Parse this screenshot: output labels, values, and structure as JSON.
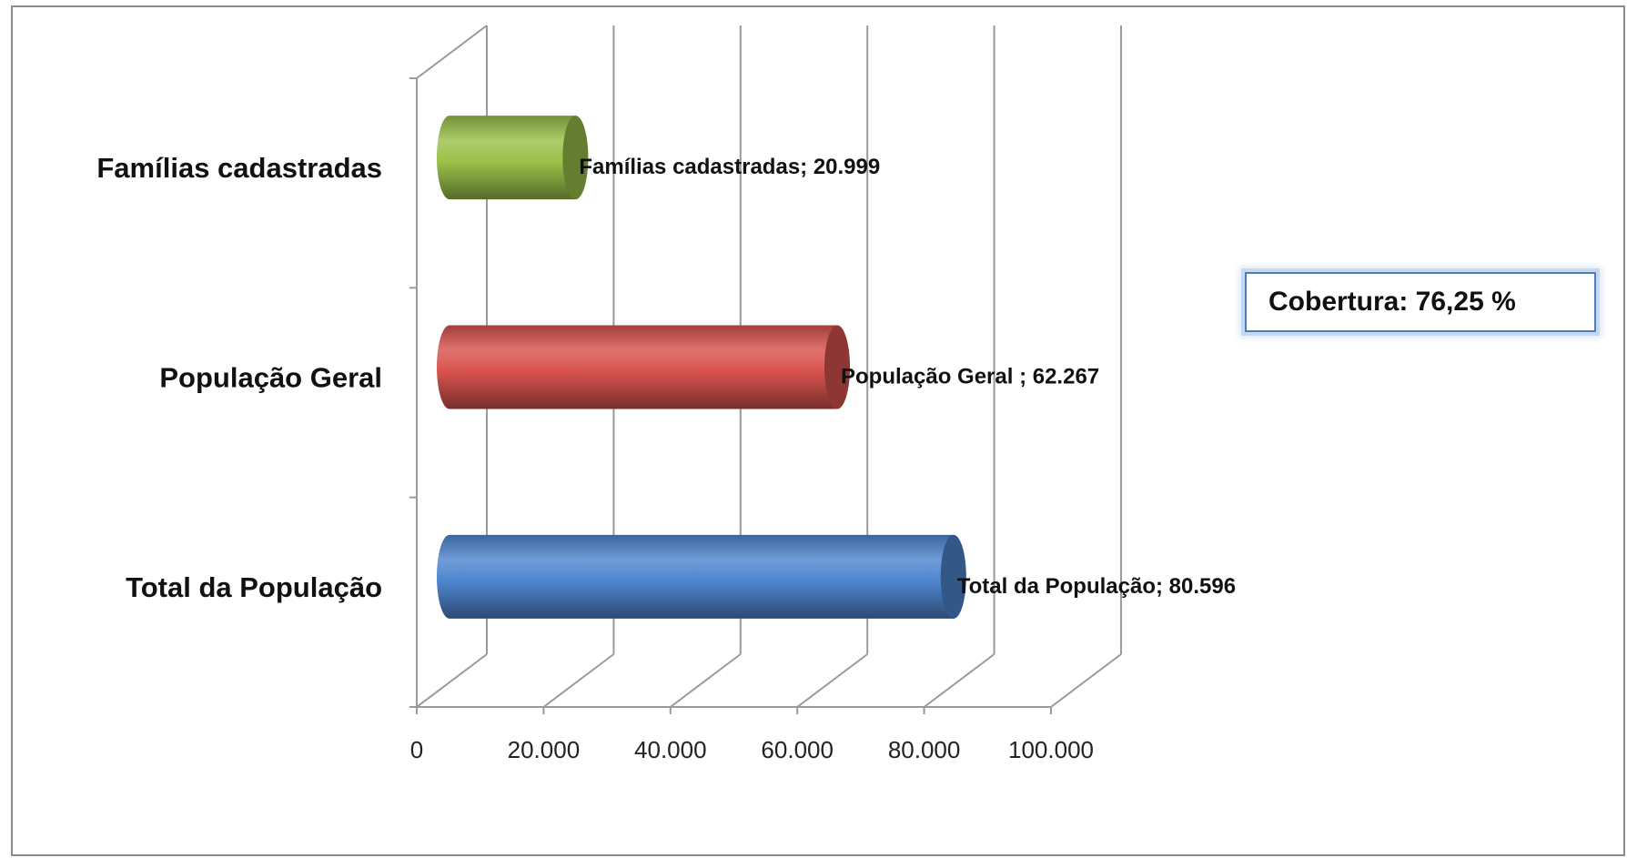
{
  "chart_data": {
    "type": "bar",
    "orientation": "horizontal",
    "style": "3d-cylinder",
    "categories": [
      "Total da População",
      "População Geral",
      "Famílias cadastradas"
    ],
    "values": [
      80596,
      62267,
      20999
    ],
    "colors": [
      "#4f86cf",
      "#d9534f",
      "#9bc14a"
    ],
    "data_labels": [
      "Total da População; 80.596",
      "População Geral  ; 62.267",
      "Famílias cadastradas; 20.999"
    ],
    "xlim": [
      0,
      100000
    ],
    "x_ticks": [
      0,
      20000,
      40000,
      60000,
      80000,
      100000
    ],
    "x_tick_labels": [
      "0",
      "20.000",
      "40.000",
      "60.000",
      "80.000",
      "100.000"
    ],
    "grid": true,
    "legend": "none",
    "annotation": "Cobertura: 76,25 %"
  }
}
